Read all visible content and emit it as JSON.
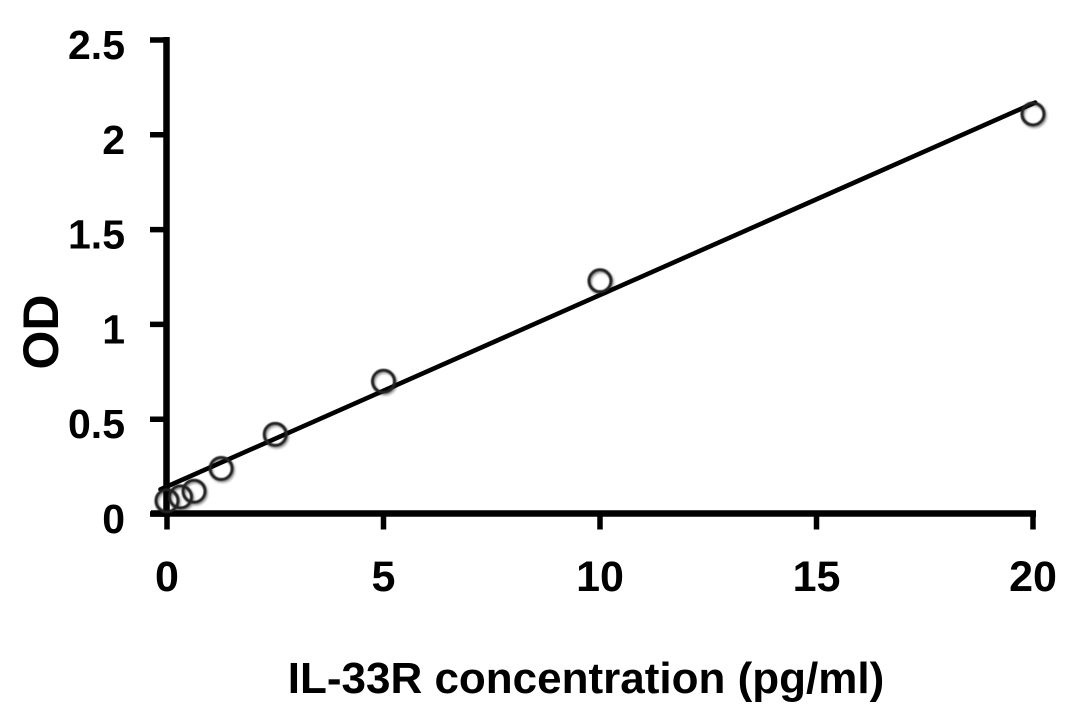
{
  "chart_data": {
    "type": "scatter",
    "title": "",
    "xlabel": "IL-33R concentration (pg/ml)",
    "ylabel": "OD",
    "x": [
      0,
      0.3125,
      0.625,
      1.25,
      2.5,
      5,
      10,
      20
    ],
    "y": [
      0.07,
      0.09,
      0.12,
      0.24,
      0.42,
      0.7,
      1.23,
      2.11
    ],
    "xlim": [
      0,
      20
    ],
    "ylim": [
      0,
      2.5
    ],
    "xticks": [
      0,
      5,
      10,
      15,
      20
    ],
    "yticks": [
      0,
      0.5,
      1,
      1.5,
      2,
      2.5
    ],
    "xtick_labels": [
      "0",
      "5",
      "10",
      "15",
      "20"
    ],
    "ytick_labels": [
      "0",
      "0.5",
      "1",
      "1.5",
      "2",
      "2.5"
    ],
    "grid": false,
    "legend": false,
    "marker": {
      "shape": "open-circle"
    },
    "trendline": {
      "type": "linear",
      "slope": 0.101,
      "intercept": 0.145,
      "x_start": -0.15,
      "x_end": 20.05
    },
    "colors": {
      "background": "#ffffff",
      "axis": "#000000",
      "trendline": "#000000",
      "marker_stroke": "#222222",
      "text": "#000000"
    }
  }
}
